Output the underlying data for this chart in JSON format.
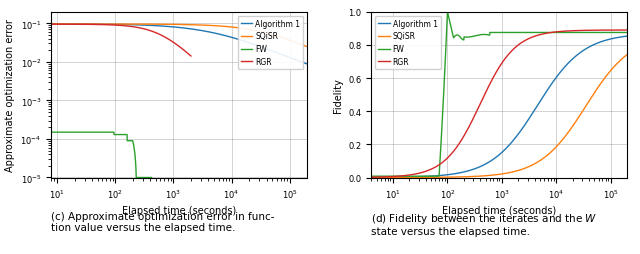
{
  "colors": [
    "#1f77b4",
    "#ff7f0e",
    "#2ca02c",
    "#d62728"
  ],
  "legend_labels": [
    "Algorithm 1",
    "SQiSR",
    "FW",
    "RGR"
  ],
  "left": {
    "xlabel": "Elapsed time (seconds)",
    "ylabel": "Approximate optimization error",
    "xlim_log": [
      0.9,
      5.3
    ],
    "ylim_log": [
      -5.0,
      -0.7
    ]
  },
  "right": {
    "xlabel": "Elapsed time (seconds)",
    "ylabel": "Fidelity",
    "xlim_log": [
      0.6,
      5.3
    ],
    "ylim": [
      0.0,
      1.0
    ]
  },
  "caption_left": "(c) Approximate optimization error in func-\ntion value versus the elapsed time.",
  "caption_right": "(d) Fidelity between the iterates and the W\nstate versus the elapsed time."
}
